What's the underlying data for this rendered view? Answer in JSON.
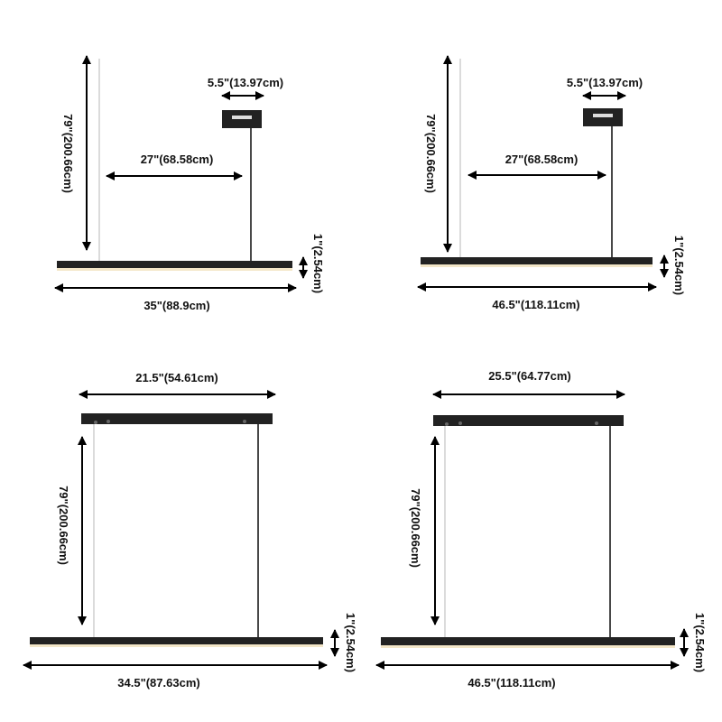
{
  "colors": {
    "fixture": "#222222",
    "diffuser": "#f3e6c8",
    "dimension_lines": "#000000",
    "background": "#ffffff"
  },
  "panels": [
    {
      "style": "single-point canopy",
      "canopy_width": "5.5\"(13.97cm)",
      "offset": "27\"(68.58cm)",
      "drop": "79\"(200.66cm)",
      "height": "1\"(2.54cm)",
      "length": "35\"(88.9cm)"
    },
    {
      "style": "single-point canopy",
      "canopy_width": "5.5\"(13.97cm)",
      "offset": "27\"(68.58cm)",
      "drop": "79\"(200.66cm)",
      "height": "1\"(2.54cm)",
      "length": "46.5\"(118.11cm)"
    },
    {
      "style": "linear canopy",
      "canopy_width": "21.5\"(54.61cm)",
      "drop": "79\"(200.66cm)",
      "height": "1\"(2.54cm)",
      "length": "34.5\"(87.63cm)"
    },
    {
      "style": "linear canopy",
      "canopy_width": "25.5\"(64.77cm)",
      "drop": "79\"(200.66cm)",
      "height": "1\"(2.54cm)",
      "length": "46.5\"(118.11cm)"
    }
  ]
}
